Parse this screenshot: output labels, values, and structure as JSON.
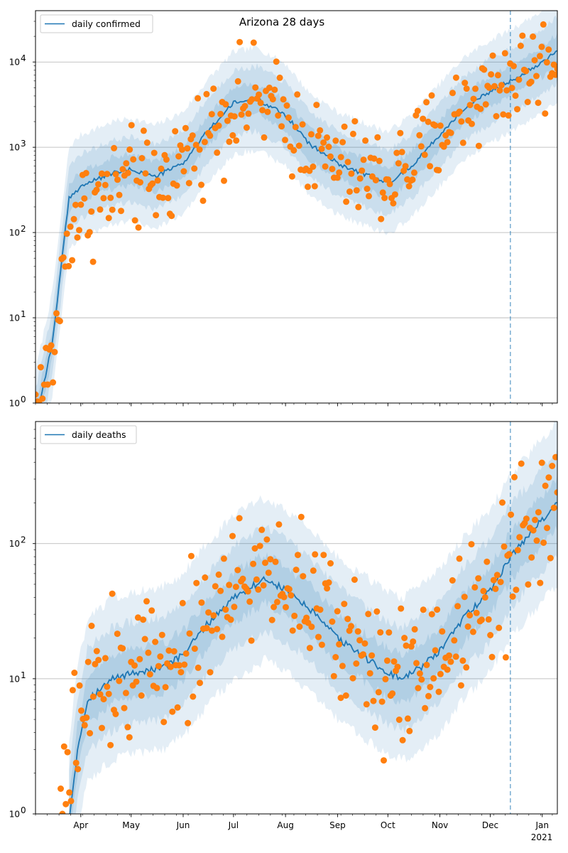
{
  "colors": {
    "model_line": "#1f77b4",
    "observed_points": "#ff7f0e",
    "band": "#1f77b4",
    "grid": "#b0b0b0",
    "forecast_marker": "#1f77b4"
  },
  "chart_data": [
    {
      "type": "line",
      "title": "Arizona 28 days",
      "legend": {
        "entries": [
          "daily confirmed"
        ],
        "placement": "top-left"
      },
      "yscale": "log",
      "ylim": [
        1,
        40000
      ],
      "yticks": [
        {
          "value": 1,
          "base": "10",
          "exp": "0"
        },
        {
          "value": 10,
          "base": "10",
          "exp": "1"
        },
        {
          "value": 100,
          "base": "10",
          "exp": "2"
        },
        {
          "value": 1000,
          "base": "10",
          "exp": "3"
        },
        {
          "value": 10000,
          "base": "10",
          "exp": "4"
        }
      ],
      "grid": "horizontal",
      "xlim": [
        "2020-03-05",
        "2021-01-10"
      ],
      "forecast_start": "2020-12-13",
      "series": [
        {
          "name": "daily confirmed",
          "kind": "model_median",
          "knots": [
            [
              "2020-03-05",
              0.6
            ],
            [
              "2020-03-15",
              5
            ],
            [
              "2020-03-25",
              250
            ],
            [
              "2020-04-01",
              350
            ],
            [
              "2020-04-20",
              500
            ],
            [
              "2020-05-01",
              550
            ],
            [
              "2020-05-15",
              450
            ],
            [
              "2020-06-01",
              650
            ],
            [
              "2020-06-15",
              1500
            ],
            [
              "2020-07-01",
              3300
            ],
            [
              "2020-07-15",
              3700
            ],
            [
              "2020-08-01",
              2400
            ],
            [
              "2020-08-15",
              1100
            ],
            [
              "2020-09-01",
              650
            ],
            [
              "2020-09-15",
              500
            ],
            [
              "2020-10-01",
              380
            ],
            [
              "2020-10-15",
              600
            ],
            [
              "2020-11-01",
              1400
            ],
            [
              "2020-11-15",
              2800
            ],
            [
              "2020-12-01",
              4500
            ],
            [
              "2020-12-13",
              6000
            ],
            [
              "2021-01-01",
              10000
            ],
            [
              "2021-01-10",
              14000
            ]
          ]
        },
        {
          "kind": "observed",
          "anchors": [
            [
              "2020-03-05",
              1
            ],
            [
              "2020-03-15",
              3
            ],
            [
              "2020-03-25",
              120
            ],
            [
              "2020-04-01",
              180
            ],
            [
              "2020-04-20",
              300
            ],
            [
              "2020-05-01",
              400
            ],
            [
              "2020-05-15",
              350
            ],
            [
              "2020-06-01",
              700
            ],
            [
              "2020-06-15",
              1600
            ],
            [
              "2020-07-01",
              3200
            ],
            [
              "2020-07-15",
              3500
            ],
            [
              "2020-08-01",
              2200
            ],
            [
              "2020-08-15",
              1000
            ],
            [
              "2020-09-01",
              600
            ],
            [
              "2020-09-15",
              480
            ],
            [
              "2020-10-01",
              420
            ],
            [
              "2020-10-15",
              700
            ],
            [
              "2020-11-01",
              1500
            ],
            [
              "2020-11-15",
              3000
            ],
            [
              "2020-12-01",
              4800
            ],
            [
              "2020-12-13",
              6500
            ],
            [
              "2021-01-01",
              9000
            ],
            [
              "2021-01-10",
              11000
            ]
          ],
          "count": 300,
          "scatter_dex": 0.45
        }
      ]
    },
    {
      "type": "line",
      "title": "",
      "legend": {
        "entries": [
          "daily deaths"
        ],
        "placement": "top-left"
      },
      "yscale": "log",
      "ylim": [
        1,
        800
      ],
      "yticks": [
        {
          "value": 1,
          "base": "10",
          "exp": "0"
        },
        {
          "value": 10,
          "base": "10",
          "exp": "1"
        },
        {
          "value": 100,
          "base": "10",
          "exp": "2"
        }
      ],
      "grid": "horizontal",
      "xlim": [
        "2020-03-05",
        "2021-01-10"
      ],
      "xticks": [
        {
          "date": "2020-04-01",
          "label": "Apr"
        },
        {
          "date": "2020-05-01",
          "label": "May"
        },
        {
          "date": "2020-06-01",
          "label": "Jun"
        },
        {
          "date": "2020-07-01",
          "label": "Jul"
        },
        {
          "date": "2020-08-01",
          "label": "Aug"
        },
        {
          "date": "2020-09-01",
          "label": "Sep"
        },
        {
          "date": "2020-10-01",
          "label": "Oct"
        },
        {
          "date": "2020-11-01",
          "label": "Nov"
        },
        {
          "date": "2020-12-01",
          "label": "Dec"
        },
        {
          "date": "2021-01-01",
          "label": "Jan"
        }
      ],
      "year_label": "2021",
      "forecast_start": "2020-12-13",
      "series": [
        {
          "name": "daily deaths",
          "kind": "model_median",
          "knots": [
            [
              "2020-03-25",
              0.9
            ],
            [
              "2020-03-30",
              3
            ],
            [
              "2020-04-05",
              7
            ],
            [
              "2020-04-20",
              10
            ],
            [
              "2020-05-01",
              11
            ],
            [
              "2020-05-20",
              12
            ],
            [
              "2020-06-01",
              15
            ],
            [
              "2020-06-15",
              25
            ],
            [
              "2020-07-01",
              40
            ],
            [
              "2020-07-20",
              55
            ],
            [
              "2020-08-01",
              45
            ],
            [
              "2020-08-15",
              33
            ],
            [
              "2020-09-01",
              20
            ],
            [
              "2020-09-15",
              15
            ],
            [
              "2020-10-01",
              11
            ],
            [
              "2020-10-10",
              10
            ],
            [
              "2020-10-20",
              12
            ],
            [
              "2020-11-01",
              16
            ],
            [
              "2020-11-15",
              28
            ],
            [
              "2020-12-01",
              45
            ],
            [
              "2020-12-13",
              80
            ],
            [
              "2021-01-01",
              150
            ],
            [
              "2021-01-10",
              200
            ]
          ]
        },
        {
          "kind": "observed",
          "anchors": [
            [
              "2020-03-20",
              1
            ],
            [
              "2020-04-01",
              5
            ],
            [
              "2020-04-15",
              10
            ],
            [
              "2020-05-01",
              12
            ],
            [
              "2020-05-15",
              14
            ],
            [
              "2020-06-01",
              16
            ],
            [
              "2020-06-15",
              28
            ],
            [
              "2020-07-01",
              45
            ],
            [
              "2020-07-20",
              65
            ],
            [
              "2020-08-01",
              55
            ],
            [
              "2020-08-15",
              35
            ],
            [
              "2020-09-01",
              22
            ],
            [
              "2020-09-15",
              16
            ],
            [
              "2020-10-01",
              12
            ],
            [
              "2020-10-15",
              11
            ],
            [
              "2020-11-01",
              18
            ],
            [
              "2020-11-15",
              30
            ],
            [
              "2020-12-01",
              50
            ],
            [
              "2020-12-13",
              85
            ],
            [
              "2021-01-01",
              140
            ],
            [
              "2021-01-10",
              180
            ]
          ],
          "count": 290,
          "scatter_dex": 0.4
        }
      ]
    }
  ]
}
